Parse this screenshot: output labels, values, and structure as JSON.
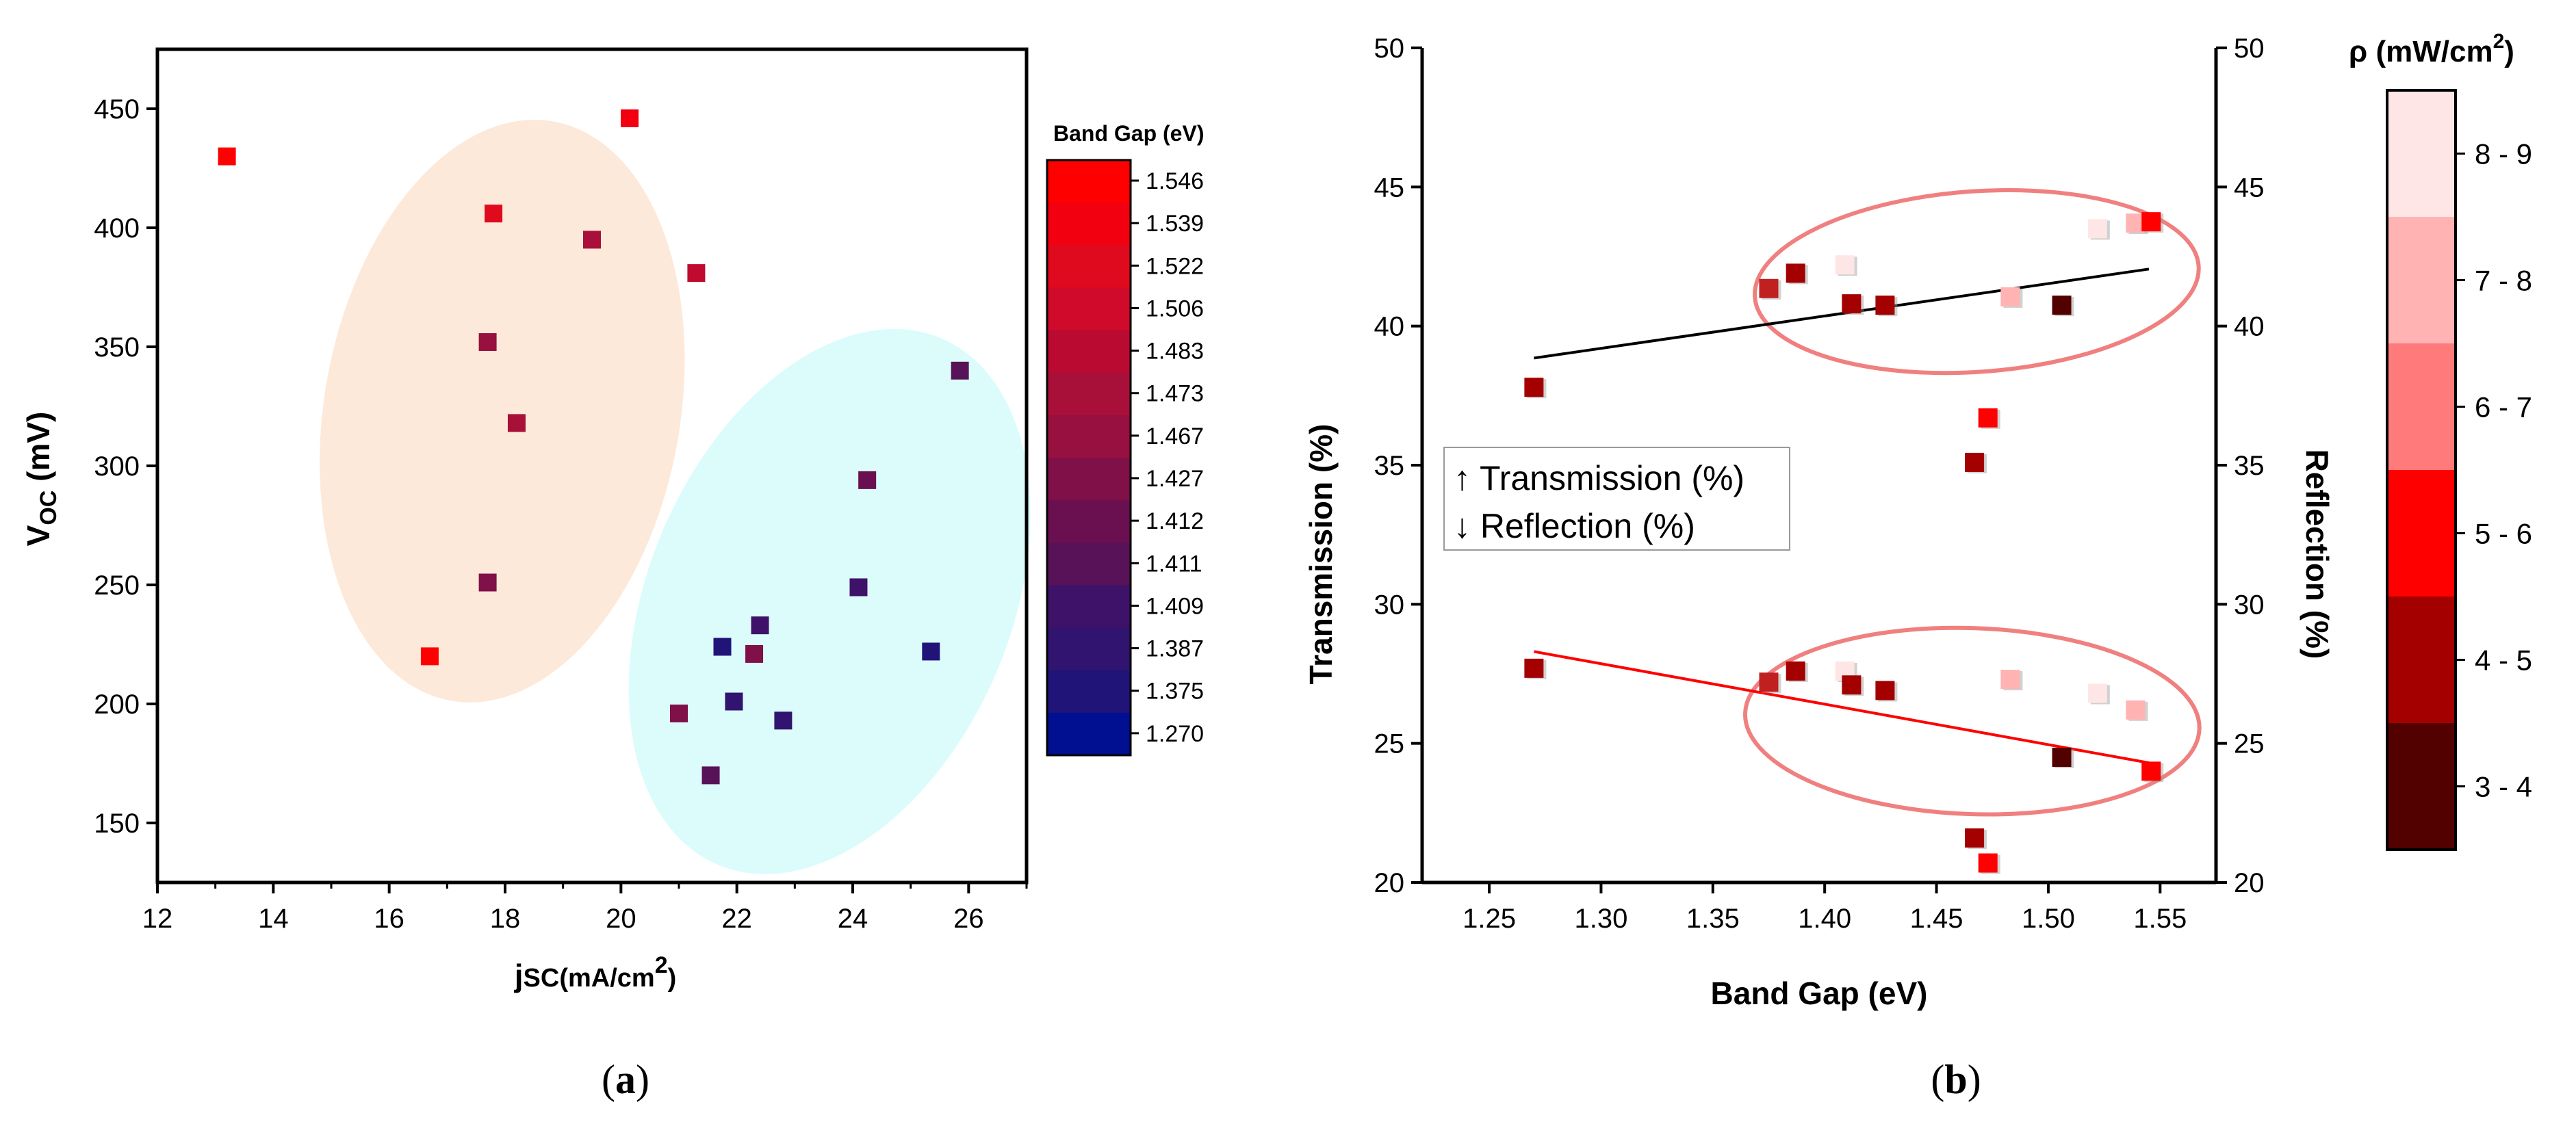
{
  "figure": {
    "label_a": "a",
    "label_b": "b"
  },
  "chart_data": [
    {
      "type": "scatter",
      "id": "a",
      "xlabel_main": "j",
      "xlabel_sub": "SC",
      "xlabel_unit": "(mA/cm",
      "xlabel_sup": "2",
      "xlabel_end": ")",
      "ylabel_main": "V",
      "ylabel_sub": "OC",
      "ylabel_unit": " (mV)",
      "xlim": [
        12,
        27
      ],
      "ylim": [
        125,
        475
      ],
      "xticks": [
        12,
        14,
        16,
        18,
        20,
        22,
        24,
        26
      ],
      "yticks": [
        150,
        200,
        250,
        300,
        350,
        400,
        450
      ],
      "colorbar": {
        "title": "Band Gap (eV)",
        "labels": [
          "1.546",
          "1.539",
          "1.522",
          "1.506",
          "1.483",
          "1.473",
          "1.467",
          "1.427",
          "1.412",
          "1.411",
          "1.409",
          "1.387",
          "1.375",
          "1.270"
        ],
        "colors": [
          "#ff0000",
          "#f2000f",
          "#e00a1e",
          "#d00a2a",
          "#bb0a32",
          "#a8103a",
          "#98103f",
          "#801048",
          "#6a1050",
          "#581258",
          "#3e1268",
          "#301470",
          "#201478",
          "#001090"
        ]
      },
      "clusters": [
        {
          "name": "orange",
          "color": "#fde9d9"
        },
        {
          "name": "cyan",
          "color": "#dcfcfc"
        }
      ],
      "points": [
        {
          "x": 13.2,
          "y": 430,
          "color": "#ff0000"
        },
        {
          "x": 20.15,
          "y": 446,
          "color": "#f2000f"
        },
        {
          "x": 17.8,
          "y": 406,
          "color": "#e00a1e"
        },
        {
          "x": 19.5,
          "y": 395,
          "color": "#a8103a"
        },
        {
          "x": 21.3,
          "y": 381,
          "color": "#c00a30"
        },
        {
          "x": 17.7,
          "y": 352,
          "color": "#98103f"
        },
        {
          "x": 18.2,
          "y": 318,
          "color": "#a8103a"
        },
        {
          "x": 17.7,
          "y": 251,
          "color": "#801048"
        },
        {
          "x": 16.7,
          "y": 220,
          "color": "#ff0000"
        },
        {
          "x": 25.85,
          "y": 340,
          "color": "#581258"
        },
        {
          "x": 24.25,
          "y": 294,
          "color": "#6a1050"
        },
        {
          "x": 24.1,
          "y": 249,
          "color": "#3e1268"
        },
        {
          "x": 22.4,
          "y": 233,
          "color": "#3e1268"
        },
        {
          "x": 21.75,
          "y": 224,
          "color": "#201478"
        },
        {
          "x": 22.3,
          "y": 221,
          "color": "#801048"
        },
        {
          "x": 25.35,
          "y": 222,
          "color": "#201478"
        },
        {
          "x": 21.95,
          "y": 201,
          "color": "#301470"
        },
        {
          "x": 21.0,
          "y": 196,
          "color": "#801048"
        },
        {
          "x": 22.8,
          "y": 193,
          "color": "#301470"
        },
        {
          "x": 21.55,
          "y": 170,
          "color": "#581258"
        }
      ]
    },
    {
      "type": "scatter",
      "id": "b",
      "xlabel": "Band Gap (eV)",
      "ylabel_left": "Transmission (%)",
      "ylabel_right": "Reflection (%)",
      "xlim": [
        1.22,
        1.575
      ],
      "ylim": [
        20,
        50
      ],
      "xticks": [
        "1.25",
        "1.30",
        "1.35",
        "1.40",
        "1.45",
        "1.50",
        "1.55"
      ],
      "yticks": [
        20,
        25,
        30,
        35,
        40,
        45,
        50
      ],
      "legend_lines": [
        "↑ Transmission (%)",
        "↓ Reflection (%)"
      ],
      "colorbar": {
        "title_main": "ρ (mW/cm",
        "title_sup": "2",
        "title_end": ")",
        "labels": [
          "8 - 9",
          "7 - 8",
          "6 - 7",
          "5 - 6",
          "4 - 5",
          "3 - 4"
        ],
        "colors": [
          "#ffe6e6",
          "#ffb3b3",
          "#ff7a7a",
          "#ff0000",
          "#a40000",
          "#520000"
        ]
      },
      "fit_transmission": {
        "x": [
          1.27,
          1.545
        ],
        "y": [
          38.85,
          42.05
        ],
        "color": "#000000"
      },
      "fit_reflection": {
        "x": [
          1.27,
          1.545
        ],
        "y": [
          28.3,
          24.3
        ],
        "color": "#ff0000"
      },
      "ellipse_color": "#f08080",
      "transmission": [
        {
          "x": 1.27,
          "y": 37.8,
          "color": "#a40000"
        },
        {
          "x": 1.375,
          "y": 41.35,
          "color": "#c02020"
        },
        {
          "x": 1.387,
          "y": 41.9,
          "color": "#a40000"
        },
        {
          "x": 1.409,
          "y": 42.2,
          "color": "#ffe6e6"
        },
        {
          "x": 1.412,
          "y": 40.8,
          "color": "#a40000"
        },
        {
          "x": 1.427,
          "y": 40.75,
          "color": "#a40000"
        },
        {
          "x": 1.467,
          "y": 35.1,
          "color": "#a40000"
        },
        {
          "x": 1.473,
          "y": 36.7,
          "color": "#ff0000"
        },
        {
          "x": 1.483,
          "y": 41.05,
          "color": "#ffb3b3"
        },
        {
          "x": 1.506,
          "y": 40.75,
          "color": "#520000"
        },
        {
          "x": 1.522,
          "y": 43.5,
          "color": "#ffe6e6"
        },
        {
          "x": 1.539,
          "y": 43.7,
          "color": "#ffb3b3"
        },
        {
          "x": 1.546,
          "y": 43.75,
          "color": "#ff0000"
        }
      ],
      "reflection": [
        {
          "x": 1.27,
          "y": 27.7,
          "color": "#a40000"
        },
        {
          "x": 1.375,
          "y": 27.2,
          "color": "#c02020"
        },
        {
          "x": 1.387,
          "y": 27.6,
          "color": "#a40000"
        },
        {
          "x": 1.409,
          "y": 27.6,
          "color": "#ffe6e6"
        },
        {
          "x": 1.412,
          "y": 27.1,
          "color": "#a40000"
        },
        {
          "x": 1.427,
          "y": 26.9,
          "color": "#a40000"
        },
        {
          "x": 1.467,
          "y": 21.6,
          "color": "#a40000"
        },
        {
          "x": 1.473,
          "y": 20.7,
          "color": "#ff0000"
        },
        {
          "x": 1.483,
          "y": 27.3,
          "color": "#ffb3b3"
        },
        {
          "x": 1.506,
          "y": 24.5,
          "color": "#520000"
        },
        {
          "x": 1.522,
          "y": 26.8,
          "color": "#ffe6e6"
        },
        {
          "x": 1.539,
          "y": 26.2,
          "color": "#ffb3b3"
        },
        {
          "x": 1.546,
          "y": 24.0,
          "color": "#ff0000"
        }
      ]
    }
  ]
}
